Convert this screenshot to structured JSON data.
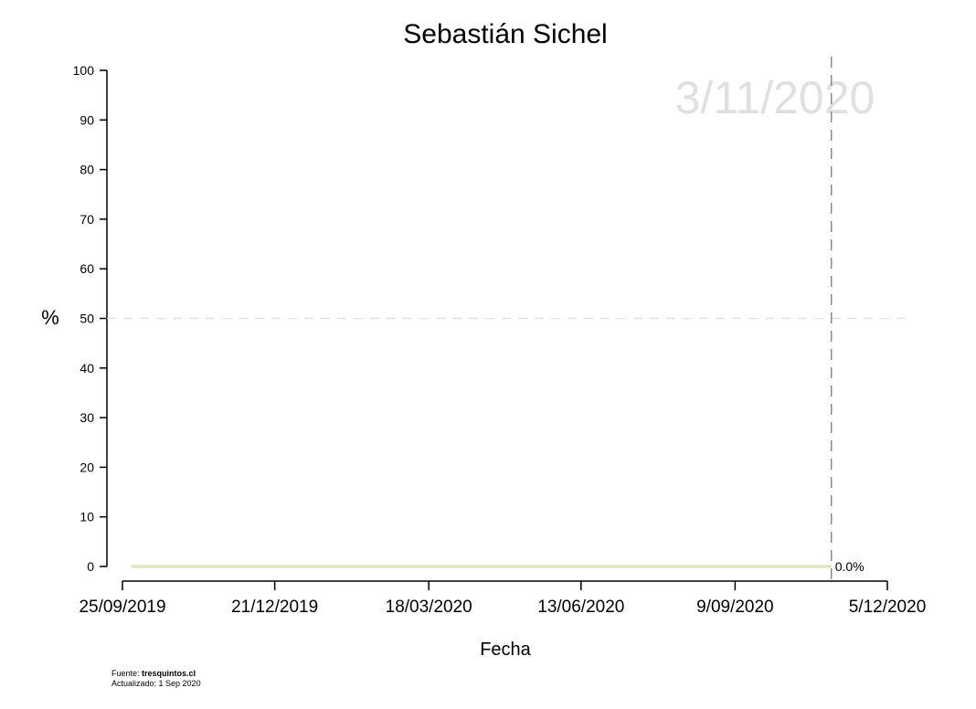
{
  "chart_data": {
    "type": "line",
    "title": "Sebastián Sichel",
    "xlabel": "Fecha",
    "ylabel": "%",
    "ylim": [
      0,
      100
    ],
    "yticks": [
      "0",
      "10",
      "20",
      "30",
      "40",
      "50",
      "60",
      "70",
      "80",
      "90",
      "100"
    ],
    "xlim": [
      "2019-09-25",
      "2020-12-05"
    ],
    "xticks": [
      {
        "date": "2019-09-25",
        "label": "25/09/2019"
      },
      {
        "date": "2019-12-21",
        "label": "21/12/2019"
      },
      {
        "date": "2020-03-18",
        "label": "18/03/2020"
      },
      {
        "date": "2020-06-13",
        "label": "13/06/2020"
      },
      {
        "date": "2020-09-09",
        "label": "9/09/2020"
      },
      {
        "date": "2020-12-05",
        "label": "5/12/2020"
      }
    ],
    "series": [
      {
        "color": "#e6e3b8",
        "x": [
          "2019-09-30",
          "2020-11-03"
        ],
        "y": [
          0,
          0
        ],
        "end_label": "0.0%"
      }
    ],
    "reference_lines": {
      "horizontal": {
        "y": 50,
        "color": "#dddddd",
        "style": "dashed"
      },
      "vertical": {
        "date": "2020-11-03",
        "label": "3/11/2020",
        "color": "#888888",
        "label_color": "#e0e0e0",
        "style": "dashed"
      }
    },
    "grid": false
  },
  "footer": {
    "source_prefix": "Fuente: ",
    "source_site": "tresquintos.cl",
    "updated": "Actualizado: 1 Sep 2020"
  }
}
